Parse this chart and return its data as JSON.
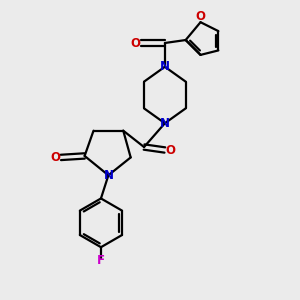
{
  "bg_color": "#ebebeb",
  "bond_color": "#000000",
  "N_color": "#0000cc",
  "O_color": "#cc0000",
  "F_color": "#cc00cc",
  "line_width": 1.6,
  "font_size": 8.5,
  "xlim": [
    0,
    10
  ],
  "ylim": [
    0,
    10
  ]
}
